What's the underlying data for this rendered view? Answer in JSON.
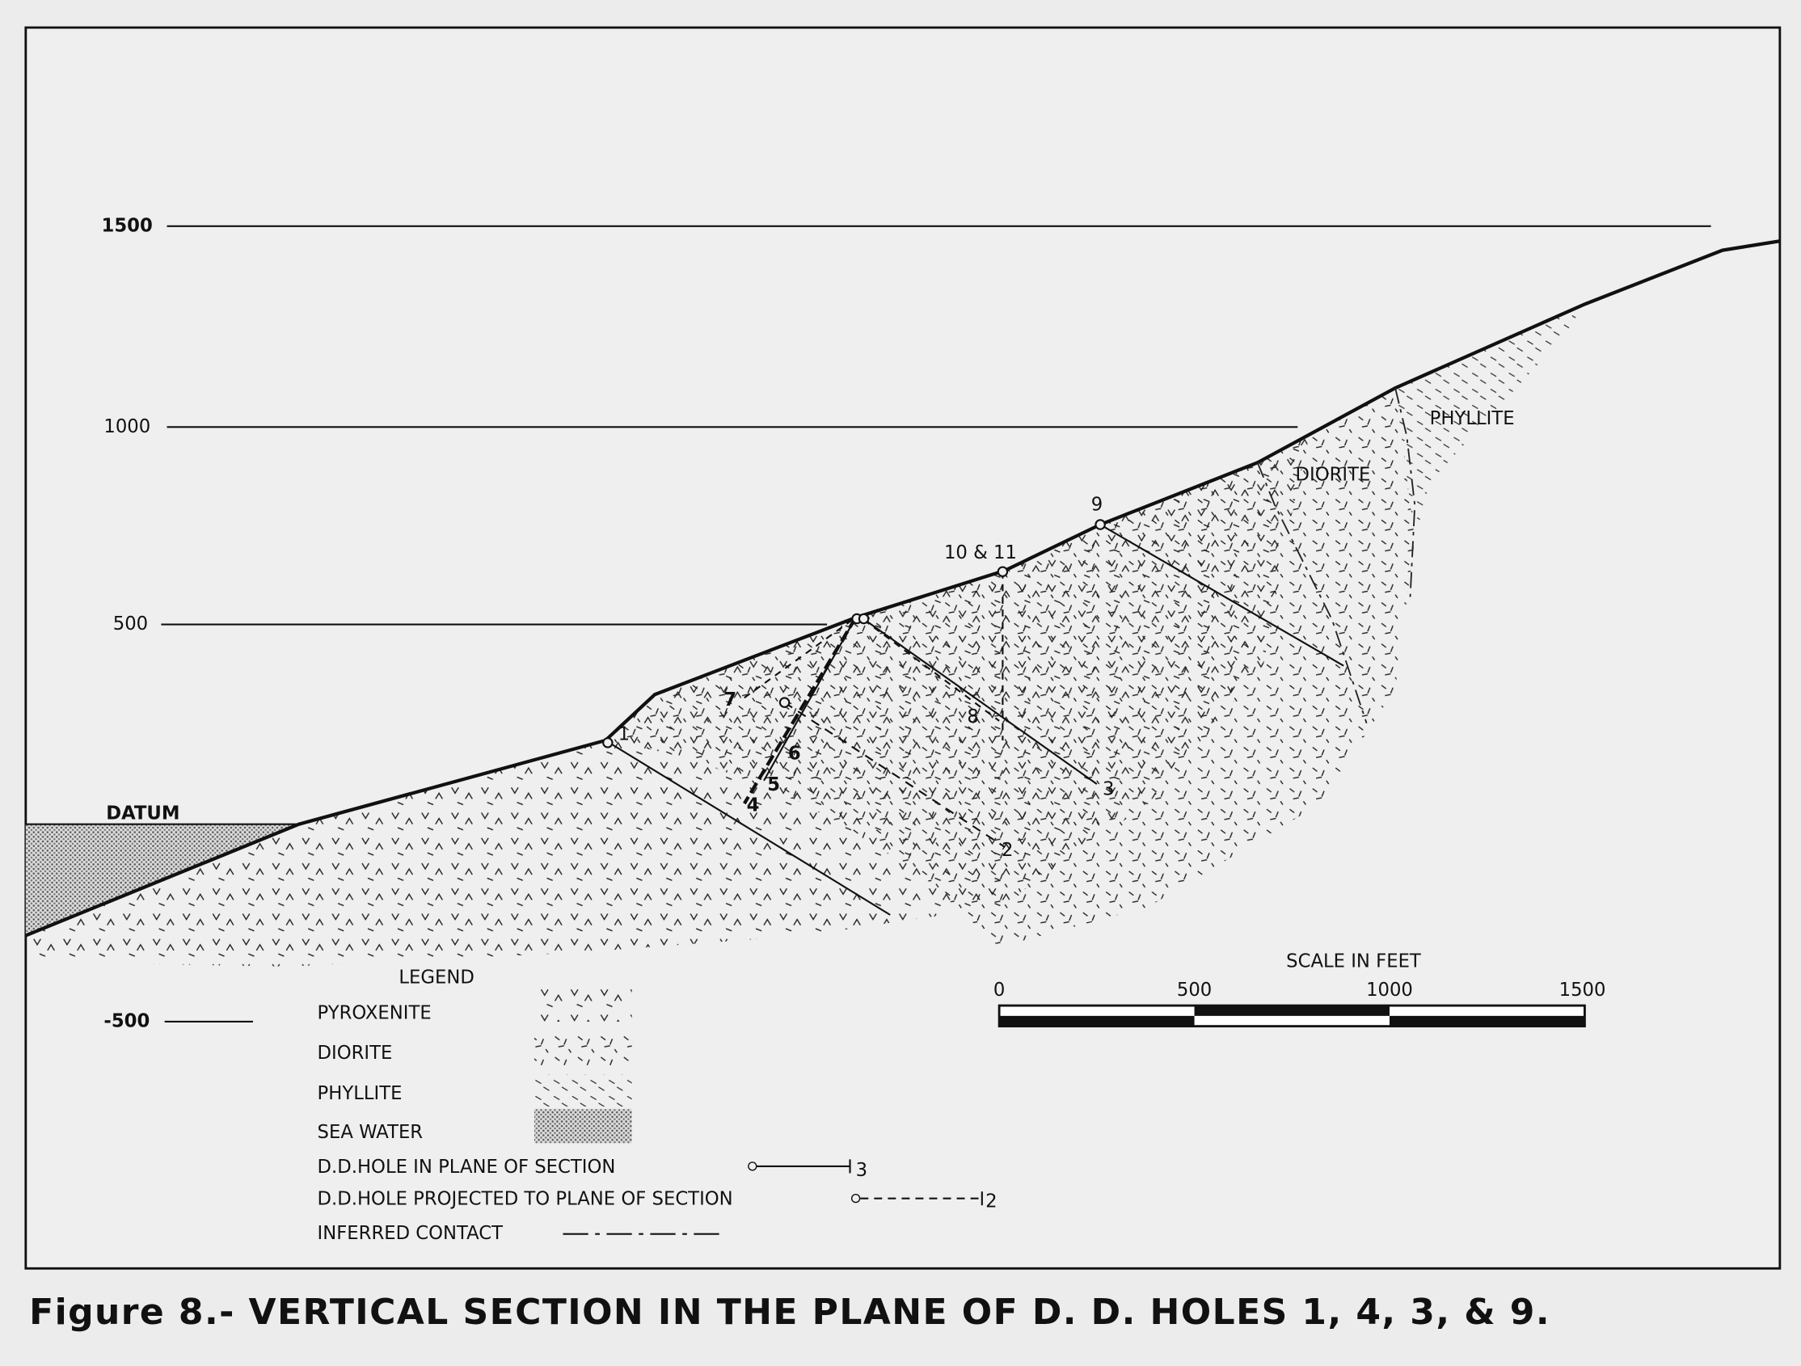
{
  "elevation_labels": [
    "1500",
    "1000",
    "500",
    "DATUM",
    "-500"
  ],
  "rock_labels": [
    "PHYLLITE",
    "DIORITE"
  ],
  "hole_labels": [
    "1",
    "4",
    "5",
    "6",
    "7",
    "8",
    "2",
    "3",
    "9",
    "10 & 11"
  ],
  "legend": {
    "title": "LEGEND",
    "items": [
      "PYROXENITE",
      "DIORITE",
      "PHYLLITE",
      "SEA WATER"
    ],
    "symbols": [
      {
        "label": "D.D.HOLE IN PLANE OF SECTION",
        "number": "3"
      },
      {
        "label": "D.D.HOLE PROJECTED TO PLANE OF SECTION",
        "number": "2"
      },
      {
        "label": "INFERRED CONTACT"
      }
    ]
  },
  "scale": {
    "title": "SCALE IN FEET",
    "ticks": [
      "0",
      "500",
      "1000",
      "1500"
    ]
  },
  "caption": "Figure 8.- VERTICAL SECTION IN THE PLANE OF D. D. HOLES 1, 4, 3, & 9."
}
